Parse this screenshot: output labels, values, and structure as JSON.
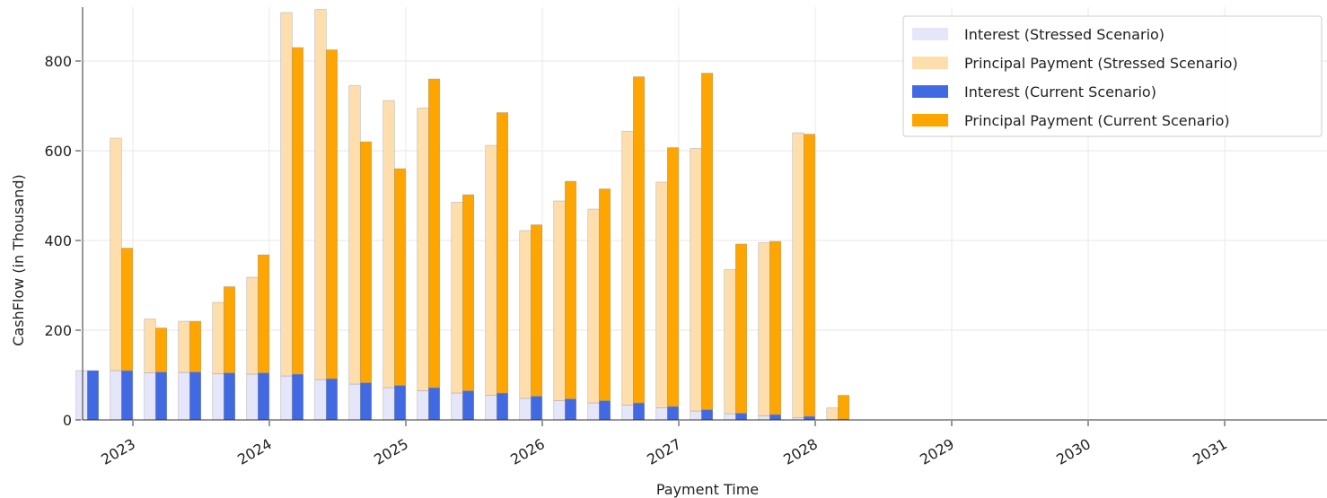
{
  "chart_data": {
    "type": "bar",
    "xlabel": "Payment Time",
    "ylabel": "CashFlow (in Thousand)",
    "x_tick_labels": [
      "2023",
      "2024",
      "2025",
      "2026",
      "2027",
      "2028",
      "2029",
      "2030",
      "2031"
    ],
    "y_tick_labels": [
      "0",
      "200",
      "400",
      "600",
      "800"
    ],
    "ylim": [
      0,
      920
    ],
    "grid": true,
    "legend_position": "top-right",
    "colors": {
      "interest_stressed": "#e6e6fa",
      "principal_stressed": "#ffdead",
      "interest_current": "#4169e1",
      "principal_current": "#ffa500"
    },
    "series": [
      {
        "name": "Interest (Stressed Scenario)",
        "scenario": "stressed",
        "component": "interest"
      },
      {
        "name": "Principal Payment (Stressed Scenario)",
        "scenario": "stressed",
        "component": "principal"
      },
      {
        "name": "Interest (Current Scenario)",
        "scenario": "current",
        "component": "interest"
      },
      {
        "name": "Principal Payment (Current Scenario)",
        "scenario": "current",
        "component": "principal"
      }
    ],
    "periods": [
      {
        "date": "2022-09",
        "stressed_interest": 110,
        "stressed_total": 110,
        "current_interest": 110,
        "current_total": 110
      },
      {
        "date": "2022-12",
        "stressed_interest": 110,
        "stressed_total": 628,
        "current_interest": 110,
        "current_total": 383
      },
      {
        "date": "2023-03",
        "stressed_interest": 105,
        "stressed_total": 225,
        "current_interest": 107,
        "current_total": 205
      },
      {
        "date": "2023-06",
        "stressed_interest": 106,
        "stressed_total": 220,
        "current_interest": 107,
        "current_total": 220
      },
      {
        "date": "2023-09",
        "stressed_interest": 103,
        "stressed_total": 262,
        "current_interest": 105,
        "current_total": 297
      },
      {
        "date": "2023-12",
        "stressed_interest": 102,
        "stressed_total": 318,
        "current_interest": 105,
        "current_total": 368
      },
      {
        "date": "2024-03",
        "stressed_interest": 98,
        "stressed_total": 908,
        "current_interest": 102,
        "current_total": 830
      },
      {
        "date": "2024-06",
        "stressed_interest": 90,
        "stressed_total": 915,
        "current_interest": 92,
        "current_total": 825
      },
      {
        "date": "2024-09",
        "stressed_interest": 80,
        "stressed_total": 745,
        "current_interest": 83,
        "current_total": 620
      },
      {
        "date": "2024-12",
        "stressed_interest": 72,
        "stressed_total": 712,
        "current_interest": 77,
        "current_total": 560
      },
      {
        "date": "2025-03",
        "stressed_interest": 65,
        "stressed_total": 695,
        "current_interest": 72,
        "current_total": 760
      },
      {
        "date": "2025-06",
        "stressed_interest": 60,
        "stressed_total": 485,
        "current_interest": 65,
        "current_total": 502
      },
      {
        "date": "2025-09",
        "stressed_interest": 55,
        "stressed_total": 612,
        "current_interest": 60,
        "current_total": 685
      },
      {
        "date": "2025-12",
        "stressed_interest": 48,
        "stressed_total": 422,
        "current_interest": 53,
        "current_total": 435
      },
      {
        "date": "2026-03",
        "stressed_interest": 43,
        "stressed_total": 488,
        "current_interest": 47,
        "current_total": 532
      },
      {
        "date": "2026-06",
        "stressed_interest": 38,
        "stressed_total": 470,
        "current_interest": 43,
        "current_total": 515
      },
      {
        "date": "2026-09",
        "stressed_interest": 33,
        "stressed_total": 643,
        "current_interest": 38,
        "current_total": 765
      },
      {
        "date": "2026-12",
        "stressed_interest": 27,
        "stressed_total": 530,
        "current_interest": 30,
        "current_total": 607
      },
      {
        "date": "2027-03",
        "stressed_interest": 20,
        "stressed_total": 605,
        "current_interest": 23,
        "current_total": 773
      },
      {
        "date": "2027-06",
        "stressed_interest": 14,
        "stressed_total": 335,
        "current_interest": 15,
        "current_total": 392
      },
      {
        "date": "2027-09",
        "stressed_interest": 9,
        "stressed_total": 395,
        "current_interest": 12,
        "current_total": 398
      },
      {
        "date": "2027-12",
        "stressed_interest": 5,
        "stressed_total": 640,
        "current_interest": 8,
        "current_total": 637
      },
      {
        "date": "2028-03",
        "stressed_interest": 1,
        "stressed_total": 27,
        "current_interest": 2,
        "current_total": 55
      }
    ]
  }
}
